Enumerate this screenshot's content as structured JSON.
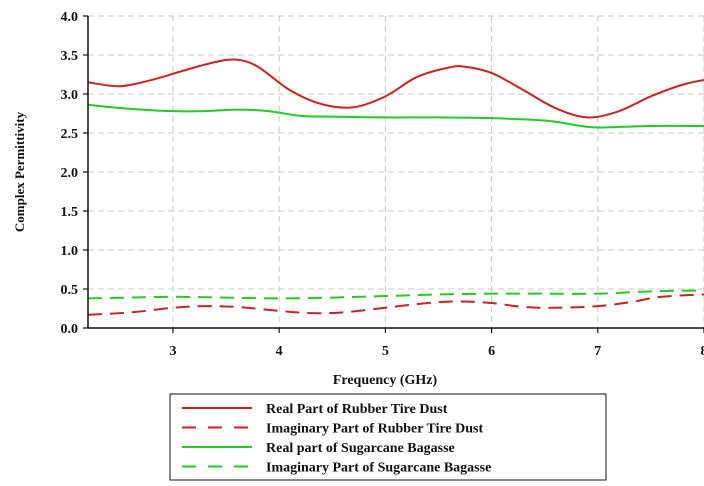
{
  "chart_data": {
    "type": "line",
    "title": "",
    "xlabel": "Frequency (GHz)",
    "ylabel": "Complex Permittivity",
    "xlim": [
      2.2,
      8.0
    ],
    "ylim": [
      0.0,
      4.0
    ],
    "x_ticks": [
      3,
      4,
      5,
      6,
      7,
      8
    ],
    "x_tick_labels": [
      "3",
      "4",
      "5",
      "6",
      "7",
      "8"
    ],
    "y_ticks": [
      0.0,
      0.5,
      1.0,
      1.5,
      2.0,
      2.5,
      3.0,
      3.5,
      4.0
    ],
    "y_tick_labels": [
      "0.0",
      "0.5",
      "1.0",
      "1.5",
      "2.0",
      "2.5",
      "3.0",
      "3.5",
      "4.0"
    ],
    "grid": true,
    "legend_position": "bottom",
    "series": [
      {
        "name": "Real Part of Rubber Tire Dust",
        "color": "#cc2222",
        "dash": "solid",
        "x": [
          2.2,
          2.5,
          2.8,
          3.1,
          3.4,
          3.6,
          3.8,
          4.1,
          4.4,
          4.7,
          5.0,
          5.3,
          5.6,
          5.75,
          6.0,
          6.3,
          6.6,
          6.9,
          7.2,
          7.5,
          7.8,
          8.0
        ],
        "y": [
          3.15,
          3.1,
          3.18,
          3.3,
          3.41,
          3.44,
          3.35,
          3.05,
          2.87,
          2.83,
          2.97,
          3.22,
          3.34,
          3.35,
          3.27,
          3.05,
          2.82,
          2.7,
          2.78,
          2.97,
          3.12,
          3.18
        ]
      },
      {
        "name": "Imaginary Part of Rubber Tire Dust",
        "color": "#cc2222",
        "dash": "dashed",
        "x": [
          2.2,
          2.6,
          3.0,
          3.3,
          3.6,
          4.0,
          4.3,
          4.6,
          5.0,
          5.4,
          5.7,
          6.0,
          6.3,
          6.6,
          7.0,
          7.3,
          7.6,
          8.0
        ],
        "y": [
          0.17,
          0.2,
          0.26,
          0.28,
          0.27,
          0.22,
          0.19,
          0.2,
          0.26,
          0.32,
          0.34,
          0.32,
          0.27,
          0.26,
          0.28,
          0.33,
          0.4,
          0.43
        ]
      },
      {
        "name": "Real part of Sugarcane Bagasse",
        "color": "#22cc22",
        "dash": "solid",
        "x": [
          2.2,
          2.6,
          3.0,
          3.3,
          3.6,
          3.9,
          4.2,
          4.5,
          5.0,
          5.5,
          6.0,
          6.5,
          6.8,
          7.0,
          7.5,
          8.0
        ],
        "y": [
          2.86,
          2.81,
          2.78,
          2.78,
          2.8,
          2.78,
          2.72,
          2.71,
          2.7,
          2.7,
          2.69,
          2.66,
          2.6,
          2.57,
          2.59,
          2.59
        ]
      },
      {
        "name": "Imaginary Part of Sugarcane Bagasse",
        "color": "#22cc22",
        "dash": "dashed",
        "x": [
          2.2,
          2.6,
          3.0,
          3.5,
          4.0,
          4.5,
          5.0,
          5.5,
          6.0,
          6.5,
          7.0,
          7.5,
          8.0
        ],
        "y": [
          0.38,
          0.39,
          0.4,
          0.39,
          0.38,
          0.39,
          0.41,
          0.43,
          0.44,
          0.44,
          0.44,
          0.47,
          0.48
        ]
      }
    ]
  }
}
